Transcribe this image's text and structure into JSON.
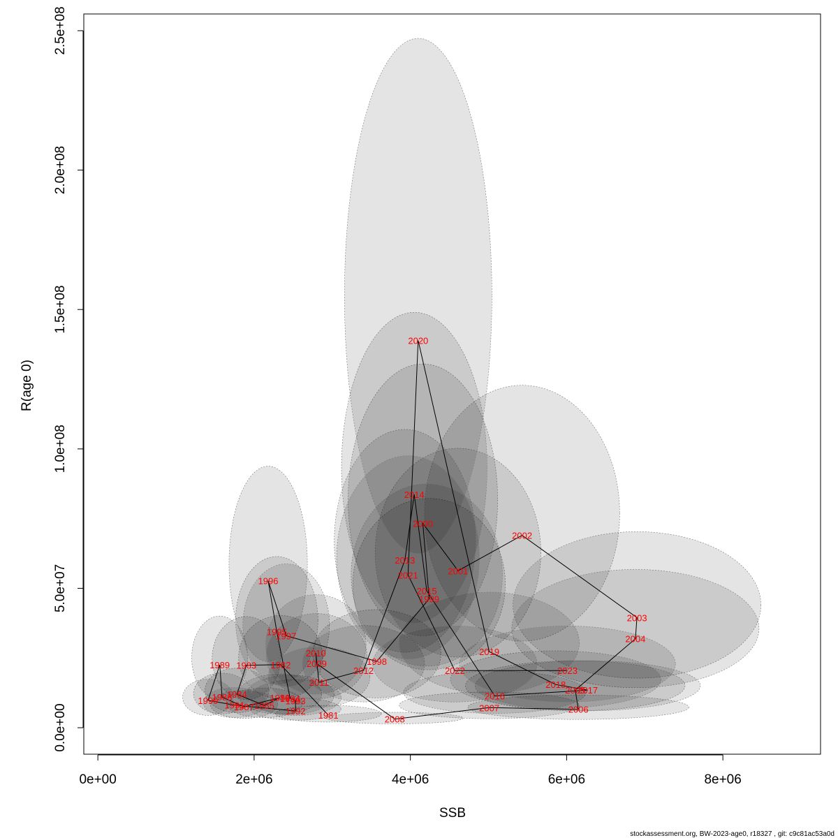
{
  "chart_data": {
    "type": "scatter",
    "xlabel": "SSB",
    "ylabel": "R(age 0)",
    "xlim": [
      -180000,
      9250000
    ],
    "ylim": [
      -9500000,
      256000000
    ],
    "x_ticks": [
      {
        "value": 0,
        "label": "0e+00"
      },
      {
        "value": 2000000,
        "label": "2e+06"
      },
      {
        "value": 4000000,
        "label": "4e+06"
      },
      {
        "value": 6000000,
        "label": "6e+06"
      },
      {
        "value": 8000000,
        "label": "8e+06"
      }
    ],
    "y_ticks": [
      {
        "value": 0,
        "label": "0.0e+00"
      },
      {
        "value": 50000000,
        "label": "5.0e+07"
      },
      {
        "value": 100000000,
        "label": "1.0e+08"
      },
      {
        "value": 150000000,
        "label": "1.5e+08"
      },
      {
        "value": 200000000,
        "label": "2.0e+08"
      },
      {
        "value": 250000000,
        "label": "2.5e+08"
      }
    ],
    "grid": false,
    "points": [
      {
        "year": "1981",
        "ssb": 2950000,
        "r": 4500000
      },
      {
        "year": "1982",
        "ssb": 2340000,
        "r": 22600000
      },
      {
        "year": "1983",
        "ssb": 1900000,
        "r": 22400000
      },
      {
        "year": "1984",
        "ssb": 1780000,
        "r": 12000000
      },
      {
        "year": "1985",
        "ssb": 2130000,
        "r": 8000000
      },
      {
        "year": "1986",
        "ssb": 2330000,
        "r": 10800000
      },
      {
        "year": "1987",
        "ssb": 1870000,
        "r": 7500000
      },
      {
        "year": "1988",
        "ssb": 1590000,
        "r": 11000000
      },
      {
        "year": "1989",
        "ssb": 1560000,
        "r": 22500000
      },
      {
        "year": "1990",
        "ssb": 1410000,
        "r": 9800000
      },
      {
        "year": "1991",
        "ssb": 1750000,
        "r": 8100000
      },
      {
        "year": "1992",
        "ssb": 2530000,
        "r": 6000000
      },
      {
        "year": "1993",
        "ssb": 2530000,
        "r": 9700000
      },
      {
        "year": "1994",
        "ssb": 2460000,
        "r": 10600000
      },
      {
        "year": "1995",
        "ssb": 2290000,
        "r": 34500000
      },
      {
        "year": "1996",
        "ssb": 2180000,
        "r": 52700000
      },
      {
        "year": "1997",
        "ssb": 2410000,
        "r": 33000000
      },
      {
        "year": "1998",
        "ssb": 3570000,
        "r": 23800000
      },
      {
        "year": "1999",
        "ssb": 4240000,
        "r": 46200000
      },
      {
        "year": "2000",
        "ssb": 4160000,
        "r": 73300000
      },
      {
        "year": "2001",
        "ssb": 4610000,
        "r": 56300000
      },
      {
        "year": "2002",
        "ssb": 5430000,
        "r": 69000000
      },
      {
        "year": "2003",
        "ssb": 6900000,
        "r": 39500000
      },
      {
        "year": "2004",
        "ssb": 6880000,
        "r": 31900000
      },
      {
        "year": "2005",
        "ssb": 6110000,
        "r": 13500000
      },
      {
        "year": "2006",
        "ssb": 6150000,
        "r": 6600000
      },
      {
        "year": "2007",
        "ssb": 5010000,
        "r": 7200000
      },
      {
        "year": "2008",
        "ssb": 3800000,
        "r": 3100000
      },
      {
        "year": "2009",
        "ssb": 2800000,
        "r": 23000000
      },
      {
        "year": "2010",
        "ssb": 2790000,
        "r": 26800000
      },
      {
        "year": "2011",
        "ssb": 2830000,
        "r": 16300000
      },
      {
        "year": "2012",
        "ssb": 3400000,
        "r": 20600000
      },
      {
        "year": "2013",
        "ssb": 3930000,
        "r": 60100000
      },
      {
        "year": "2014",
        "ssb": 4050000,
        "r": 83700000
      },
      {
        "year": "2015",
        "ssb": 4210000,
        "r": 49100000
      },
      {
        "year": "2016",
        "ssb": 5080000,
        "r": 11400000
      },
      {
        "year": "2017",
        "ssb": 6270000,
        "r": 13500000
      },
      {
        "year": "2018",
        "ssb": 5860000,
        "r": 15500000
      },
      {
        "year": "2019",
        "ssb": 5010000,
        "r": 27300000
      },
      {
        "year": "2020",
        "ssb": 4100000,
        "r": 138900000
      },
      {
        "year": "2021",
        "ssb": 3970000,
        "r": 54800000
      },
      {
        "year": "2022",
        "ssb": 4570000,
        "r": 20500000
      },
      {
        "year": "2023",
        "ssb": 6010000,
        "r": 20500000
      }
    ]
  },
  "footer_text": "stockassessment.org, BW-2023-age0, r18327 , git: c9c81ac53a0d"
}
